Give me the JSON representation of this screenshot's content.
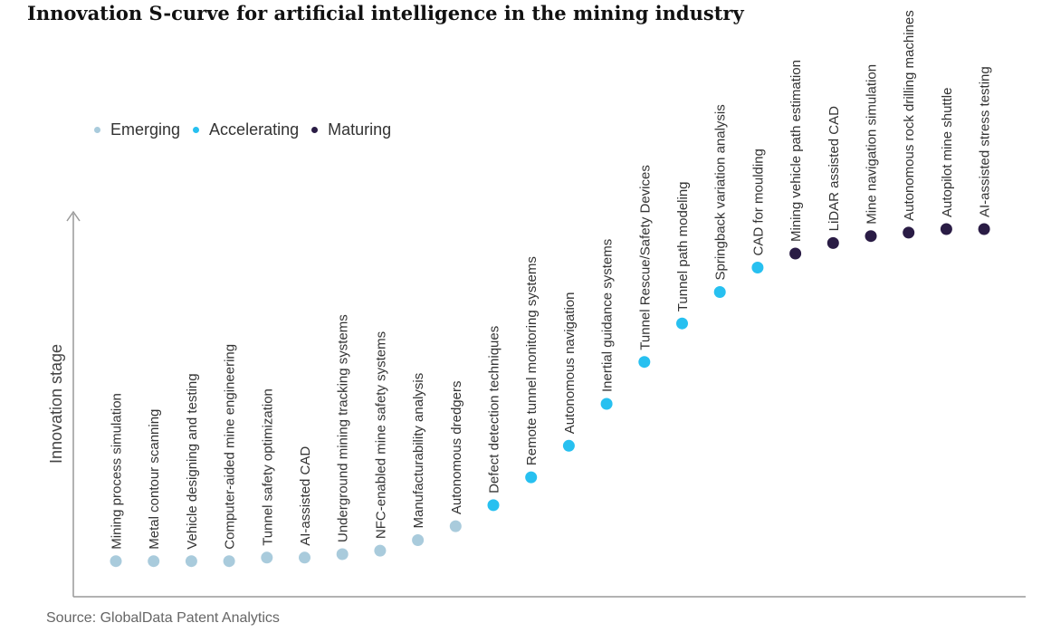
{
  "title": "Innovation S-curve for artificial intelligence in the mining industry",
  "source": "Source: GlobalData Patent Analytics",
  "colors": {
    "Emerging": "#a9cbdc",
    "Accelerating": "#27c0f0",
    "Maturing": "#2a1c45"
  },
  "chart_data": {
    "type": "scatter",
    "title": "Innovation S-curve for artificial intelligence in the mining industry",
    "ylabel": "Innovation stage",
    "xlabel": "",
    "legend": [
      {
        "name": "Emerging",
        "color": "#a9cbdc"
      },
      {
        "name": "Accelerating",
        "color": "#27c0f0"
      },
      {
        "name": "Maturing",
        "color": "#2a1c45"
      }
    ],
    "legend_position": "top-left",
    "ylim": [
      0,
      100
    ],
    "grid": false,
    "points": [
      {
        "label": "Mining process simulation",
        "stage": "Emerging",
        "y": 5
      },
      {
        "label": "Metal contour scanning",
        "stage": "Emerging",
        "y": 5
      },
      {
        "label": "Vehicle designing and testing",
        "stage": "Emerging",
        "y": 5
      },
      {
        "label": "Computer-aided mine engineering",
        "stage": "Emerging",
        "y": 5
      },
      {
        "label": "Tunnel safety optimization",
        "stage": "Emerging",
        "y": 6
      },
      {
        "label": "AI-assisted CAD",
        "stage": "Emerging",
        "y": 6
      },
      {
        "label": "Underground mining tracking systems",
        "stage": "Emerging",
        "y": 7
      },
      {
        "label": "NFC-enabled mine safety systems",
        "stage": "Emerging",
        "y": 8
      },
      {
        "label": "Manufacturability analysis",
        "stage": "Emerging",
        "y": 11
      },
      {
        "label": "Autonomous dredgers",
        "stage": "Emerging",
        "y": 15
      },
      {
        "label": "Defect detection techniques",
        "stage": "Accelerating",
        "y": 21
      },
      {
        "label": "Remote tunnel monitoring systems",
        "stage": "Accelerating",
        "y": 29
      },
      {
        "label": "Autonomous navigation",
        "stage": "Accelerating",
        "y": 38
      },
      {
        "label": "Inertial guidance systems",
        "stage": "Accelerating",
        "y": 50
      },
      {
        "label": "Tunnel Rescue/Safety Devices",
        "stage": "Accelerating",
        "y": 62
      },
      {
        "label": "Tunnel path modeling",
        "stage": "Accelerating",
        "y": 73
      },
      {
        "label": "Springback variation analysis",
        "stage": "Accelerating",
        "y": 82
      },
      {
        "label": "CAD for moulding",
        "stage": "Accelerating",
        "y": 89
      },
      {
        "label": "Mining vehicle path estimation",
        "stage": "Maturing",
        "y": 93
      },
      {
        "label": "LiDAR assisted CAD",
        "stage": "Maturing",
        "y": 96
      },
      {
        "label": "Mine navigation simulation",
        "stage": "Maturing",
        "y": 98
      },
      {
        "label": "Autonomous rock drilling machines",
        "stage": "Maturing",
        "y": 99
      },
      {
        "label": "Autopilot mine shuttle",
        "stage": "Maturing",
        "y": 100
      },
      {
        "label": "AI-assisted stress testing",
        "stage": "Maturing",
        "y": 100
      }
    ]
  }
}
